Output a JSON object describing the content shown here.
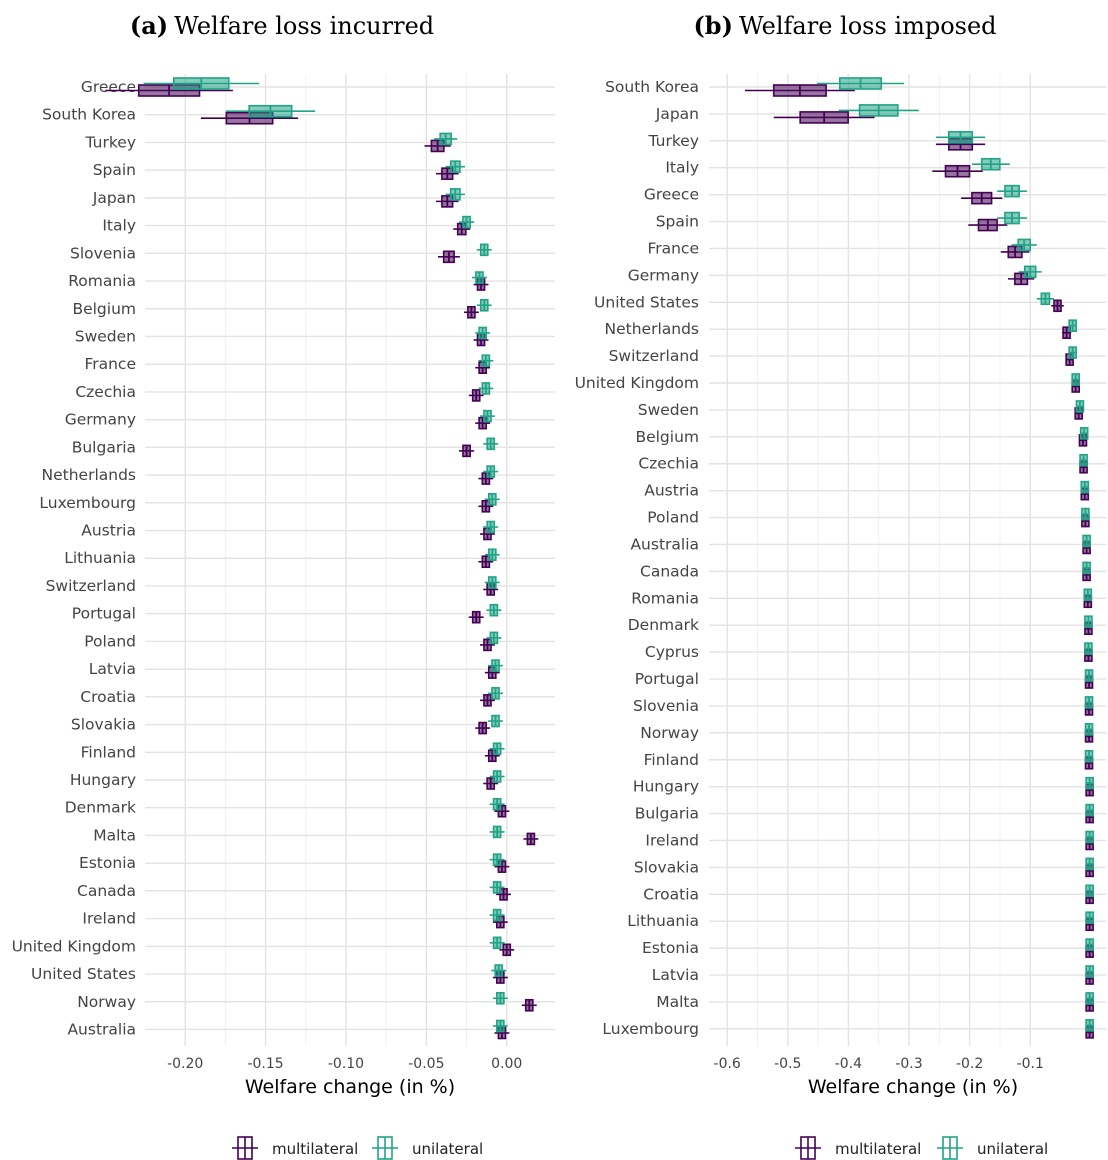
{
  "colors": {
    "multilateral": "#440154",
    "unilateral": "#21a386",
    "grid": "#e3e3e3"
  },
  "legend": {
    "labels": [
      "multilateral",
      "unilateral"
    ]
  },
  "chart_data": [
    {
      "type": "boxplot",
      "panel": "(a)",
      "title": "Welfare loss incurred",
      "xlabel": "Welfare change (in %)",
      "ylabel": "",
      "xlim": [
        -0.225,
        0.03
      ],
      "xticks": [
        -0.2,
        -0.15,
        -0.1,
        -0.05,
        0.0
      ],
      "xtick_labels": [
        "-0.20",
        "-0.15",
        "-0.10",
        "-0.05",
        "0.00"
      ],
      "grid": true,
      "legend_position": "bottom",
      "categories": [
        "Greece",
        "South Korea",
        "Turkey",
        "Spain",
        "Japan",
        "Italy",
        "Slovenia",
        "Romania",
        "Belgium",
        "Sweden",
        "France",
        "Czechia",
        "Germany",
        "Bulgaria",
        "Netherlands",
        "Luxembourg",
        "Austria",
        "Lithuania",
        "Switzerland",
        "Portugal",
        "Poland",
        "Latvia",
        "Croatia",
        "Slovakia",
        "Finland",
        "Hungary",
        "Denmark",
        "Malta",
        "Estonia",
        "Canada",
        "Ireland",
        "United Kingdom",
        "United States",
        "Norway",
        "Australia"
      ],
      "series": [
        {
          "name": "multilateral",
          "median": [
            -0.21,
            -0.16,
            -0.043,
            -0.037,
            -0.037,
            -0.028,
            -0.036,
            -0.016,
            -0.022,
            -0.016,
            -0.015,
            -0.019,
            -0.015,
            -0.025,
            -0.013,
            -0.013,
            -0.012,
            -0.013,
            -0.01,
            -0.019,
            -0.012,
            -0.009,
            -0.012,
            -0.015,
            -0.009,
            -0.01,
            -0.003,
            0.015,
            -0.003,
            -0.002,
            -0.004,
            0.0,
            -0.004,
            0.014,
            -0.003
          ]
        },
        {
          "name": "unilateral",
          "median": [
            -0.19,
            -0.147,
            -0.038,
            -0.032,
            -0.032,
            -0.025,
            -0.014,
            -0.017,
            -0.014,
            -0.015,
            -0.013,
            -0.013,
            -0.012,
            -0.01,
            -0.01,
            -0.009,
            -0.01,
            -0.009,
            -0.009,
            -0.008,
            -0.008,
            -0.007,
            -0.007,
            -0.007,
            -0.006,
            -0.006,
            -0.006,
            -0.006,
            -0.006,
            -0.006,
            -0.006,
            -0.006,
            -0.005,
            -0.004,
            -0.004
          ]
        }
      ]
    },
    {
      "type": "boxplot",
      "panel": "(b)",
      "title": "Welfare loss imposed",
      "xlabel": "Welfare change (in %)",
      "ylabel": "",
      "xlim": [
        -0.63,
        0.025
      ],
      "xticks": [
        -0.6,
        -0.5,
        -0.4,
        -0.3,
        -0.2,
        -0.1
      ],
      "xtick_labels": [
        "-0.6",
        "-0.5",
        "-0.4",
        "-0.3",
        "-0.2",
        "-0.1"
      ],
      "grid": true,
      "legend_position": "bottom",
      "categories": [
        "South Korea",
        "Japan",
        "Turkey",
        "Italy",
        "Greece",
        "Spain",
        "France",
        "Germany",
        "United States",
        "Netherlands",
        "Switzerland",
        "United Kingdom",
        "Sweden",
        "Belgium",
        "Czechia",
        "Austria",
        "Poland",
        "Australia",
        "Canada",
        "Romania",
        "Denmark",
        "Cyprus",
        "Portugal",
        "Slovenia",
        "Norway",
        "Finland",
        "Hungary",
        "Bulgaria",
        "Ireland",
        "Slovakia",
        "Croatia",
        "Lithuania",
        "Estonia",
        "Latvia",
        "Malta",
        "Luxembourg"
      ],
      "series": [
        {
          "name": "multilateral",
          "median": [
            -0.48,
            -0.44,
            -0.215,
            -0.22,
            -0.18,
            -0.17,
            -0.125,
            -0.115,
            -0.055,
            -0.04,
            -0.035,
            -0.025,
            -0.02,
            -0.013,
            -0.012,
            -0.01,
            -0.009,
            -0.007,
            -0.007,
            -0.005,
            -0.004,
            -0.004,
            -0.003,
            -0.003,
            -0.003,
            -0.003,
            -0.002,
            -0.002,
            -0.002,
            -0.002,
            -0.002,
            -0.002,
            -0.002,
            -0.002,
            -0.002,
            -0.002
          ]
        },
        {
          "name": "unilateral",
          "median": [
            -0.38,
            -0.35,
            -0.215,
            -0.165,
            -0.13,
            -0.13,
            -0.11,
            -0.1,
            -0.075,
            -0.03,
            -0.03,
            -0.025,
            -0.018,
            -0.011,
            -0.012,
            -0.01,
            -0.009,
            -0.007,
            -0.007,
            -0.005,
            -0.004,
            -0.004,
            -0.003,
            -0.003,
            -0.003,
            -0.003,
            -0.002,
            -0.002,
            -0.002,
            -0.002,
            -0.002,
            -0.002,
            -0.002,
            -0.002,
            -0.002,
            -0.002
          ]
        }
      ]
    }
  ]
}
